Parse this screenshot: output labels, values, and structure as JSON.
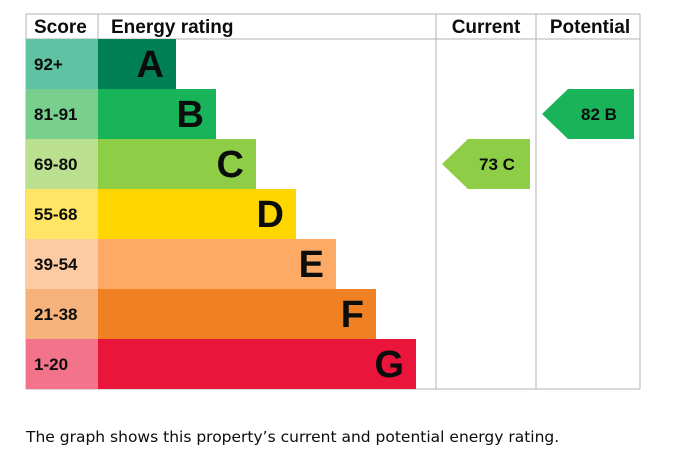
{
  "chart_data": {
    "type": "bar",
    "headers": {
      "score": "Score",
      "rating": "Energy rating",
      "current": "Current",
      "potential": "Potential"
    },
    "bands": [
      {
        "letter": "A",
        "range": "92+",
        "color": "#008054",
        "score_color": "#5fc3a3",
        "text_color": "#0b0c0c"
      },
      {
        "letter": "B",
        "range": "81-91",
        "color": "#19b459",
        "score_color": "#79cf8d",
        "text_color": "#0b0c0c"
      },
      {
        "letter": "C",
        "range": "69-80",
        "color": "#8dce46",
        "score_color": "#bbe190",
        "text_color": "#0b0c0c"
      },
      {
        "letter": "D",
        "range": "55-68",
        "color": "#ffd500",
        "score_color": "#ffe566",
        "text_color": "#0b0c0c"
      },
      {
        "letter": "E",
        "range": "39-54",
        "color": "#fcaa65",
        "score_color": "#fdcba3",
        "text_color": "#0b0c0c"
      },
      {
        "letter": "F",
        "range": "21-38",
        "color": "#ef8023",
        "score_color": "#f5b27b",
        "text_color": "#0b0c0c"
      },
      {
        "letter": "G",
        "range": "1-20",
        "color": "#e9153b",
        "score_color": "#f2738a",
        "text_color": "#0b0c0c"
      }
    ],
    "current": {
      "value": 73,
      "band": "C",
      "label": "73 C",
      "color": "#8dce46"
    },
    "potential": {
      "value": 82,
      "band": "B",
      "label": "82 B",
      "color": "#19b459"
    }
  },
  "caption": "The graph shows this property’s current and potential energy rating."
}
